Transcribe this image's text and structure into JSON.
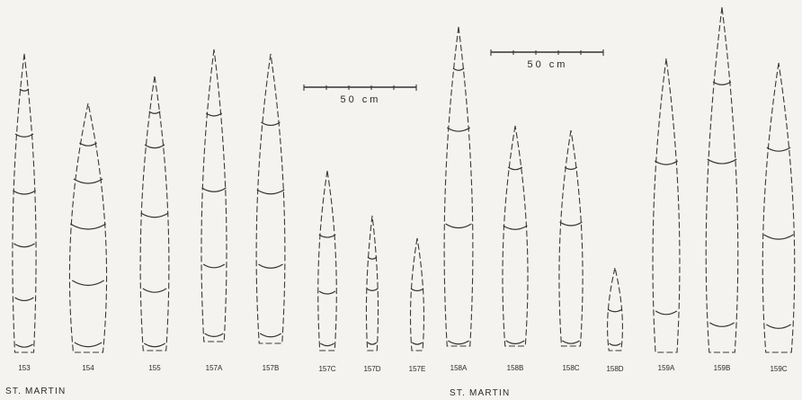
{
  "scale_bars": [
    {
      "label": "50 cm"
    },
    {
      "label": "50 cm"
    }
  ],
  "site_labels": [
    {
      "text": "ST. MARTIN"
    },
    {
      "text": "ST. MARTIN"
    }
  ],
  "stalks": [
    {
      "id": "153"
    },
    {
      "id": "154"
    },
    {
      "id": "155"
    },
    {
      "id": "157A"
    },
    {
      "id": "157B"
    },
    {
      "id": "157C"
    },
    {
      "id": "157D"
    },
    {
      "id": "157E"
    },
    {
      "id": "158A"
    },
    {
      "id": "158B"
    },
    {
      "id": "158C"
    },
    {
      "id": "158D"
    },
    {
      "id": "159A"
    },
    {
      "id": "159B"
    },
    {
      "id": "159C"
    }
  ],
  "colors": {
    "background": "#f4f3ef",
    "ink": "#2a2a2a"
  }
}
